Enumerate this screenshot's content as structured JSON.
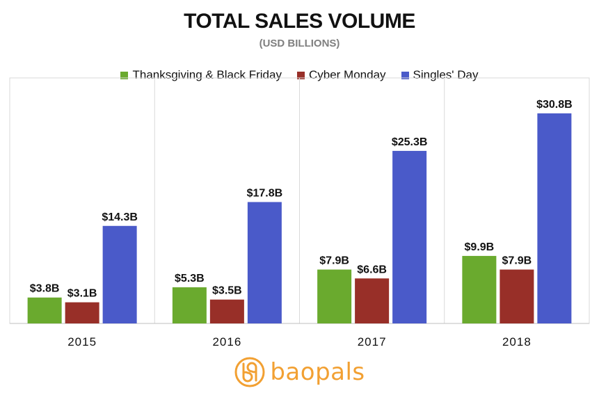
{
  "chart_data": {
    "type": "bar",
    "title": "TOTAL SALES VOLUME",
    "subtitle": "(USD BILLIONS)",
    "categories": [
      "2015",
      "2016",
      "2017",
      "2018"
    ],
    "series": [
      {
        "name": "Thanksgiving & Black Friday",
        "color": "#6aaa2e",
        "values": [
          3.8,
          5.3,
          7.9,
          9.9
        ],
        "labels": [
          "$3.8B",
          "$5.3B",
          "$7.9B",
          "$9.9B"
        ]
      },
      {
        "name": "Cyber Monday",
        "color": "#982f28",
        "values": [
          3.1,
          3.5,
          6.6,
          7.9
        ],
        "labels": [
          "$3.1B",
          "$3.5B",
          "$6.6B",
          "$7.9B"
        ]
      },
      {
        "name": "Singles' Day",
        "color": "#4a5ac9",
        "values": [
          14.3,
          17.8,
          25.3,
          30.8
        ],
        "labels": [
          "$14.3B",
          "$17.8B",
          "$25.3B",
          "$30.8B"
        ]
      }
    ],
    "ylim": [
      0,
      36
    ],
    "legend_position": "top-center",
    "grid": false
  },
  "logo": {
    "text": "baopals",
    "icon": "baopals-bp-logo-icon",
    "color": "#f2a032"
  }
}
